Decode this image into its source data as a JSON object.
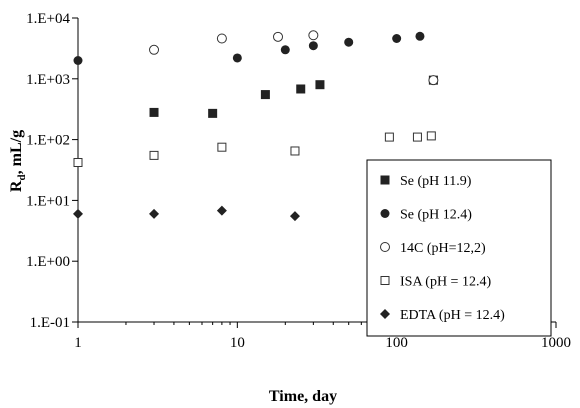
{
  "chart_data": {
    "type": "scatter",
    "title": "",
    "xlabel": "Time, day",
    "ylabel_main": "R",
    "ylabel_sub": "d",
    "ylabel_rest": ", mL/g",
    "xscale": "log",
    "yscale": "log",
    "xlim": [
      1,
      1000
    ],
    "ylim": [
      0.1,
      10000
    ],
    "x_ticks": [
      1,
      10,
      100,
      1000
    ],
    "x_tick_labels": [
      "1",
      "10",
      "100",
      "1000"
    ],
    "y_ticks": [
      0.1,
      1,
      10,
      100,
      1000,
      10000
    ],
    "y_tick_labels": [
      "1.E-01",
      "1.E+00",
      "1.E+01",
      "1.E+02",
      "1.E+03",
      "1.E+04"
    ],
    "grid": false,
    "legend_position": "bottom-right",
    "series": [
      {
        "name": "Se (pH 11.9)",
        "marker": "filled-square",
        "x": [
          3,
          7,
          15,
          25,
          33,
          170
        ],
        "y": [
          280,
          270,
          550,
          680,
          800,
          950
        ]
      },
      {
        "name": "Se (pH 12.4)",
        "marker": "filled-circle",
        "x": [
          1,
          10,
          20,
          30,
          50,
          100,
          140
        ],
        "y": [
          2000,
          2200,
          3000,
          3500,
          4000,
          4600,
          5000
        ]
      },
      {
        "name": "14C (pH=12,2)",
        "marker": "open-circle",
        "x": [
          3,
          8,
          18,
          30,
          170
        ],
        "y": [
          3000,
          4600,
          4900,
          5200,
          950
        ]
      },
      {
        "name": "ISA (pH = 12.4)",
        "marker": "open-square",
        "x": [
          1,
          3,
          8,
          23,
          90,
          135,
          165
        ],
        "y": [
          42,
          55,
          75,
          65,
          110,
          110,
          115
        ]
      },
      {
        "name": "EDTA (pH = 12.4)",
        "marker": "filled-diamond",
        "x": [
          1,
          3,
          8,
          23
        ],
        "y": [
          6,
          6,
          6.8,
          5.5
        ]
      }
    ]
  }
}
